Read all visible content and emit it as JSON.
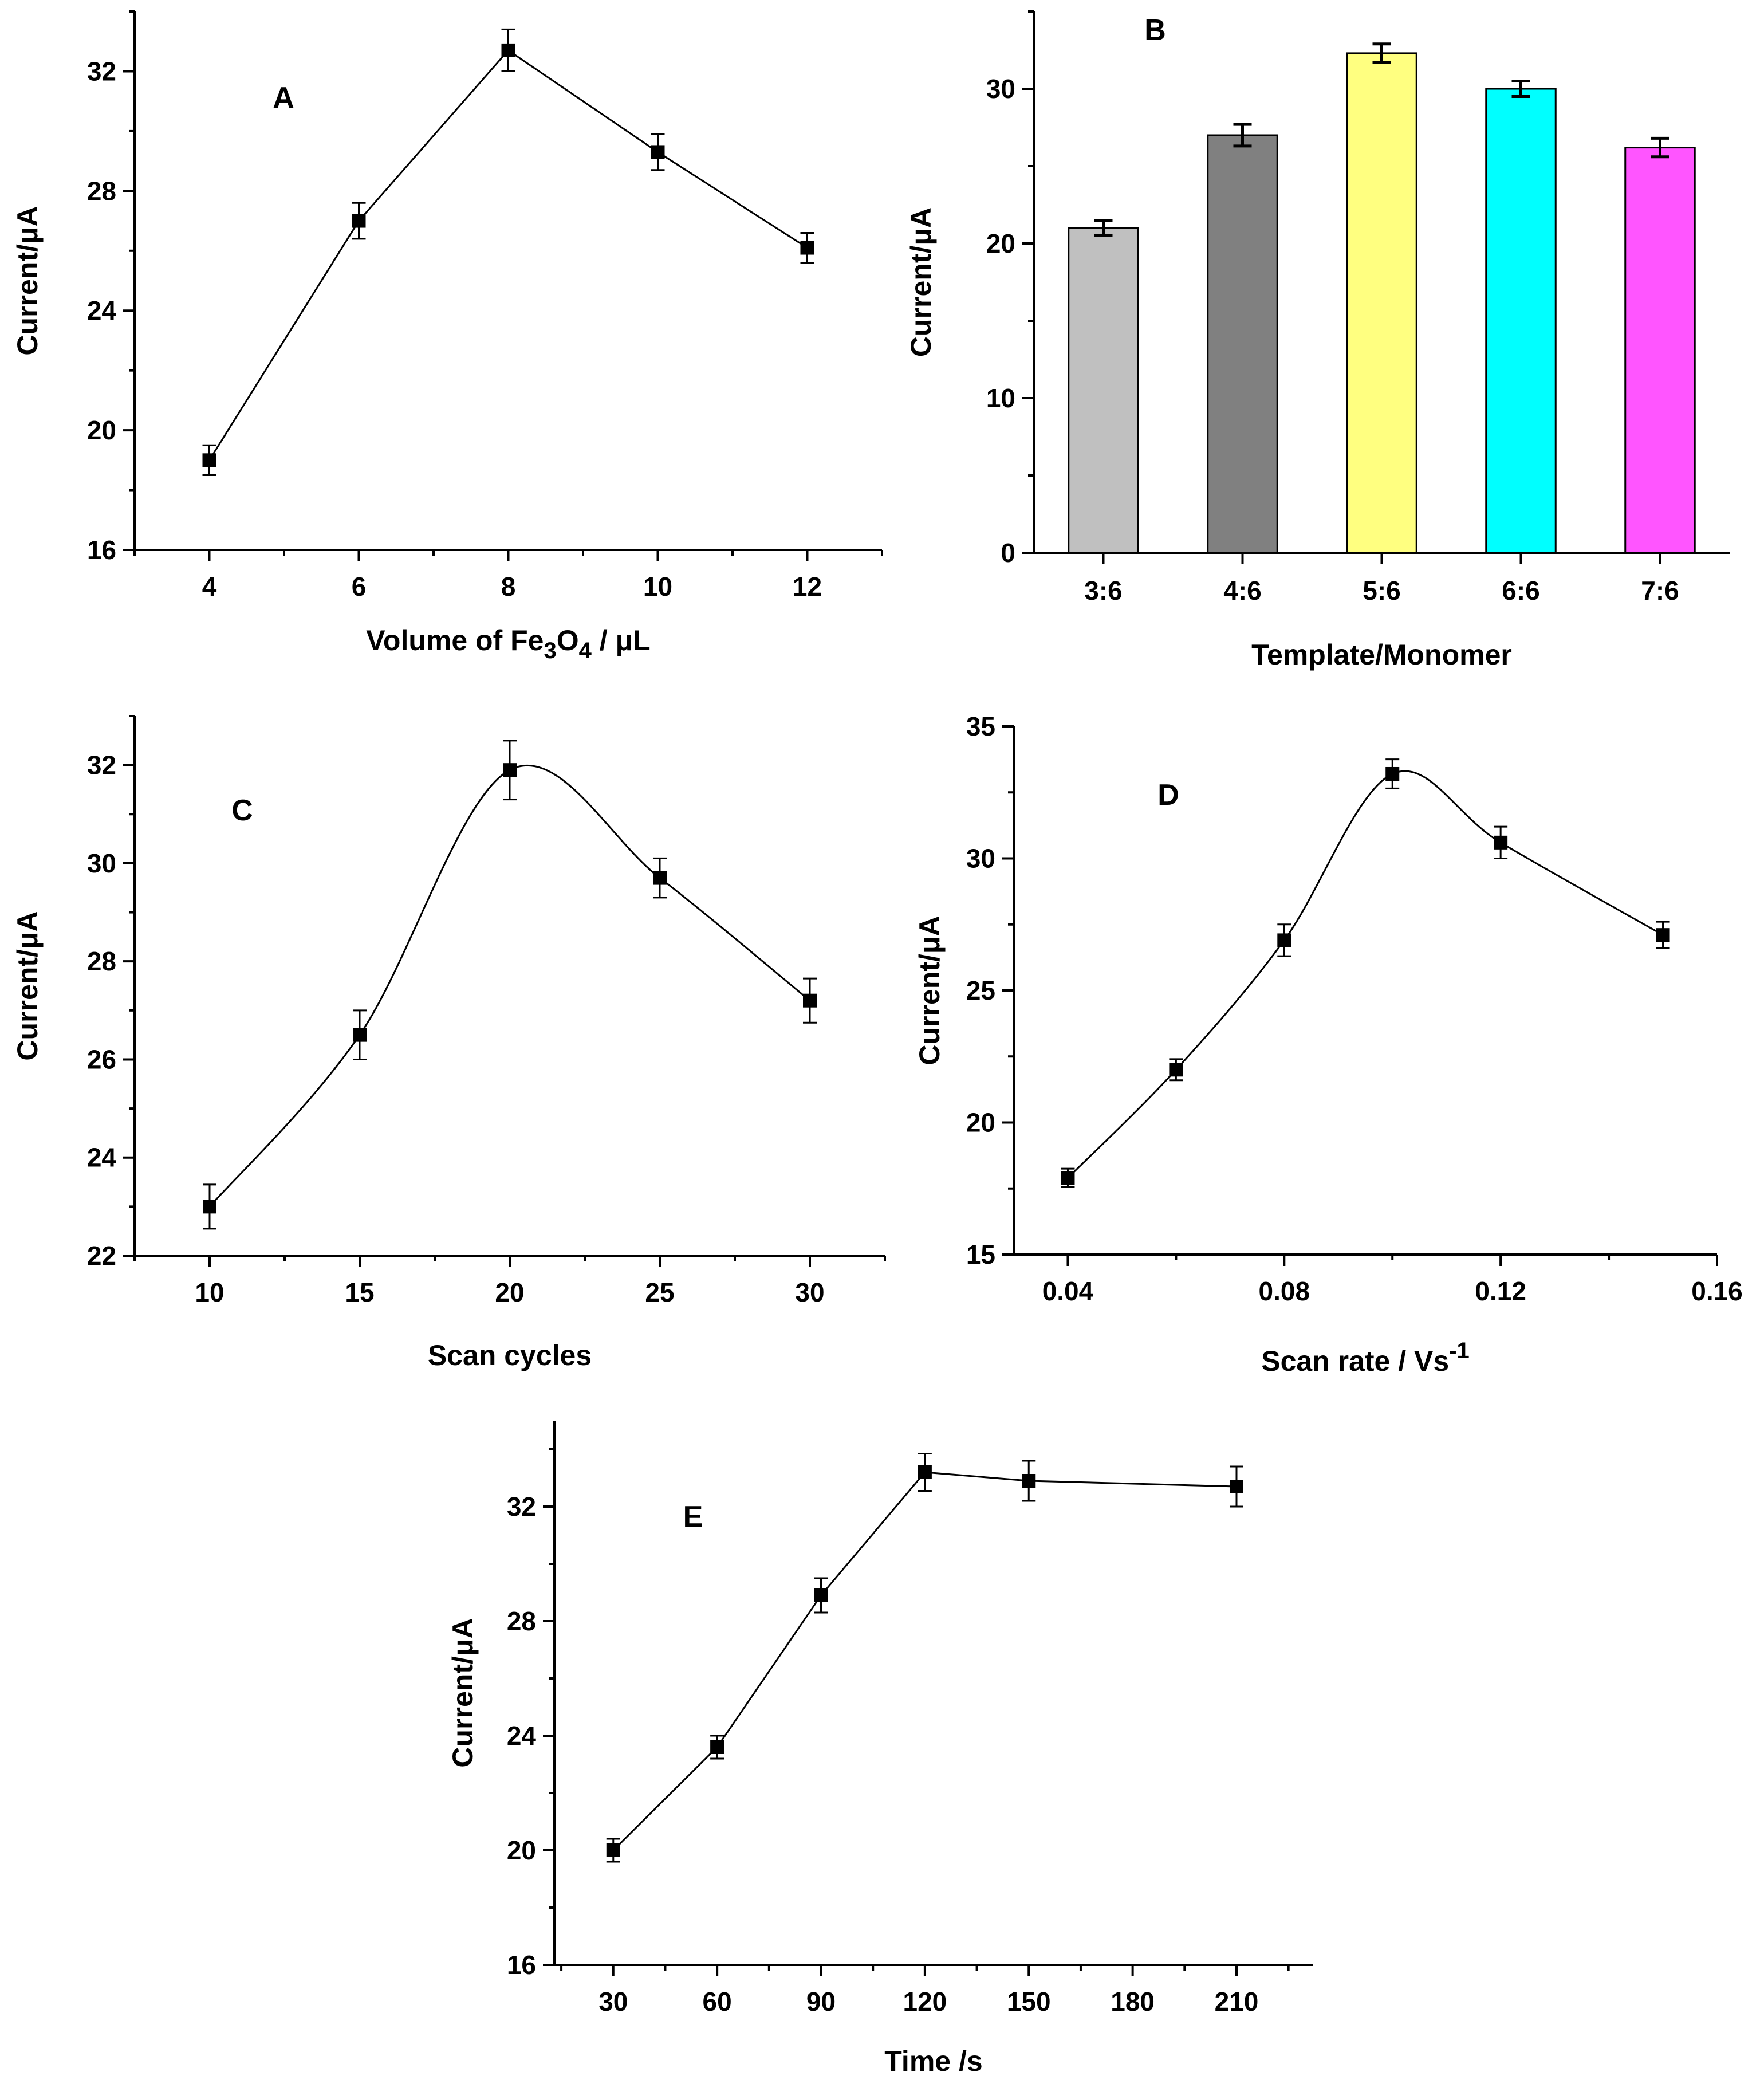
{
  "chart_data": [
    {
      "id": "A",
      "type": "line",
      "panel_label": "A",
      "x": [
        4,
        6,
        8,
        10,
        12
      ],
      "values": [
        19.0,
        27.0,
        32.7,
        29.3,
        26.1
      ],
      "errors": [
        0.5,
        0.6,
        0.7,
        0.6,
        0.5
      ],
      "xlim": [
        3,
        13
      ],
      "ylim": [
        16,
        34
      ],
      "xticks": [
        4,
        6,
        8,
        10,
        12
      ],
      "yticks": [
        16,
        20,
        24,
        28,
        32
      ],
      "ylabel": "Current/μA",
      "xlabel": {
        "pre": "Volume of Fe",
        "sub1": "3",
        "mid": "O",
        "sub2": "4",
        "post": " / μL"
      },
      "curve": "straight"
    },
    {
      "id": "B",
      "type": "bar",
      "panel_label": "B",
      "categories": [
        "3:6",
        "4:6",
        "5:6",
        "6:6",
        "7:6"
      ],
      "values": [
        21.0,
        27.0,
        32.3,
        30.0,
        26.2
      ],
      "errors": [
        0.5,
        0.7,
        0.6,
        0.5,
        0.6
      ],
      "colors": [
        "#c0c0c0",
        "#808080",
        "#ffff80",
        "#00ffff",
        "#ff55ff"
      ],
      "ylim": [
        0,
        35
      ],
      "yticks": [
        0,
        10,
        20,
        30
      ],
      "ylabel": "Current/μA",
      "xlabel": "Template/Monomer"
    },
    {
      "id": "C",
      "type": "line",
      "panel_label": "C",
      "x": [
        10,
        15,
        20,
        25,
        30
      ],
      "values": [
        23.0,
        26.5,
        31.9,
        29.7,
        27.2
      ],
      "errors": [
        0.45,
        0.5,
        0.6,
        0.4,
        0.45
      ],
      "xlim": [
        7.5,
        32.5
      ],
      "ylim": [
        22,
        33
      ],
      "xticks": [
        10,
        15,
        20,
        25,
        30
      ],
      "yticks": [
        22,
        24,
        26,
        28,
        30,
        32
      ],
      "ylabel": "Current/μA",
      "xlabel": "Scan cycles",
      "curve": "smooth"
    },
    {
      "id": "D",
      "type": "line",
      "panel_label": "D",
      "x": [
        0.04,
        0.06,
        0.08,
        0.1,
        0.12,
        0.15
      ],
      "values": [
        17.9,
        22.0,
        26.9,
        33.2,
        30.6,
        27.1
      ],
      "errors": [
        0.35,
        0.4,
        0.6,
        0.55,
        0.6,
        0.5
      ],
      "xlim": [
        0.03,
        0.16
      ],
      "ylim": [
        15,
        35
      ],
      "xticks": [
        0.04,
        0.08,
        0.12,
        0.16
      ],
      "xtick_labels": [
        "0.04",
        "0.08",
        "0.12",
        "0.16"
      ],
      "yticks": [
        15,
        20,
        25,
        30,
        35
      ],
      "ylabel": "Current/μA",
      "xlabel": {
        "pre": "Scan rate / Vs",
        "sup": "-1"
      },
      "curve": "smooth"
    },
    {
      "id": "E",
      "type": "line",
      "panel_label": "E",
      "x": [
        30,
        60,
        90,
        120,
        150,
        210
      ],
      "values": [
        20.0,
        23.6,
        28.9,
        33.2,
        32.9,
        32.7
      ],
      "errors": [
        0.4,
        0.4,
        0.6,
        0.65,
        0.7,
        0.7
      ],
      "xlim": [
        13,
        232
      ],
      "ylim": [
        16,
        35
      ],
      "xticks": [
        30,
        60,
        90,
        120,
        150,
        180,
        210
      ],
      "yticks": [
        16,
        20,
        24,
        28,
        32
      ],
      "ylabel": "Current/μA",
      "xlabel": "Time /s",
      "curve": "straight"
    }
  ]
}
